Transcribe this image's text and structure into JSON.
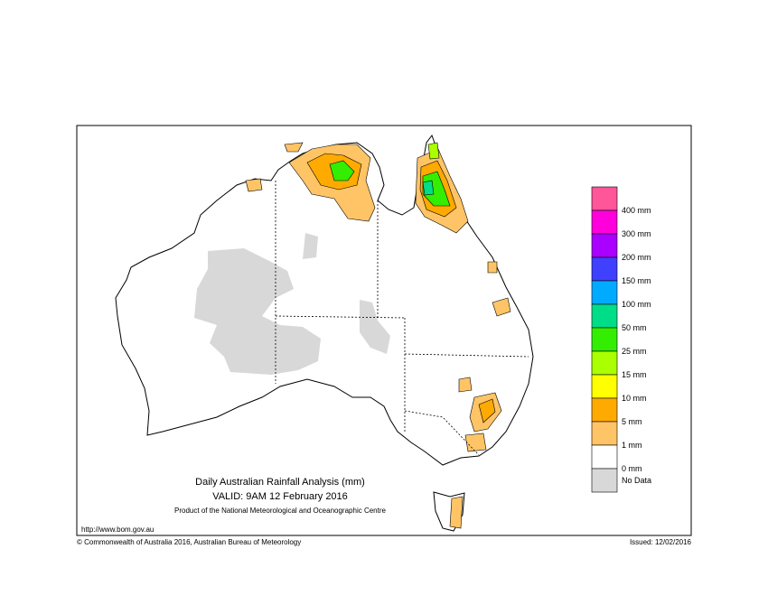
{
  "header": {
    "title": "Daily Australian Rainfall Analysis (mm)",
    "valid": "VALID: 9AM 12 February 2016",
    "product": "Product of the National Meteorological and Oceanographic Centre",
    "url": "http://www.bom.gov.au"
  },
  "legend": {
    "colors": [
      "#ff5599",
      "#ff00dd",
      "#aa00ff",
      "#4040ff",
      "#00aaff",
      "#00dd88",
      "#33ee00",
      "#aaff00",
      "#ffff00",
      "#ffaa00",
      "#ffc466",
      "#ffffff",
      "#d8d8d8"
    ],
    "labels": [
      "400 mm",
      "300 mm",
      "200 mm",
      "150 mm",
      "100 mm",
      "50 mm",
      "25 mm",
      "15 mm",
      "10 mm",
      "5 mm",
      "1 mm",
      "0 mm"
    ],
    "no_data_label": "No Data"
  },
  "footer": {
    "copyright": "© Commonwealth of Australia 2016, Australian Bureau of Meteorology",
    "issued": "Issued: 12/02/2016"
  }
}
